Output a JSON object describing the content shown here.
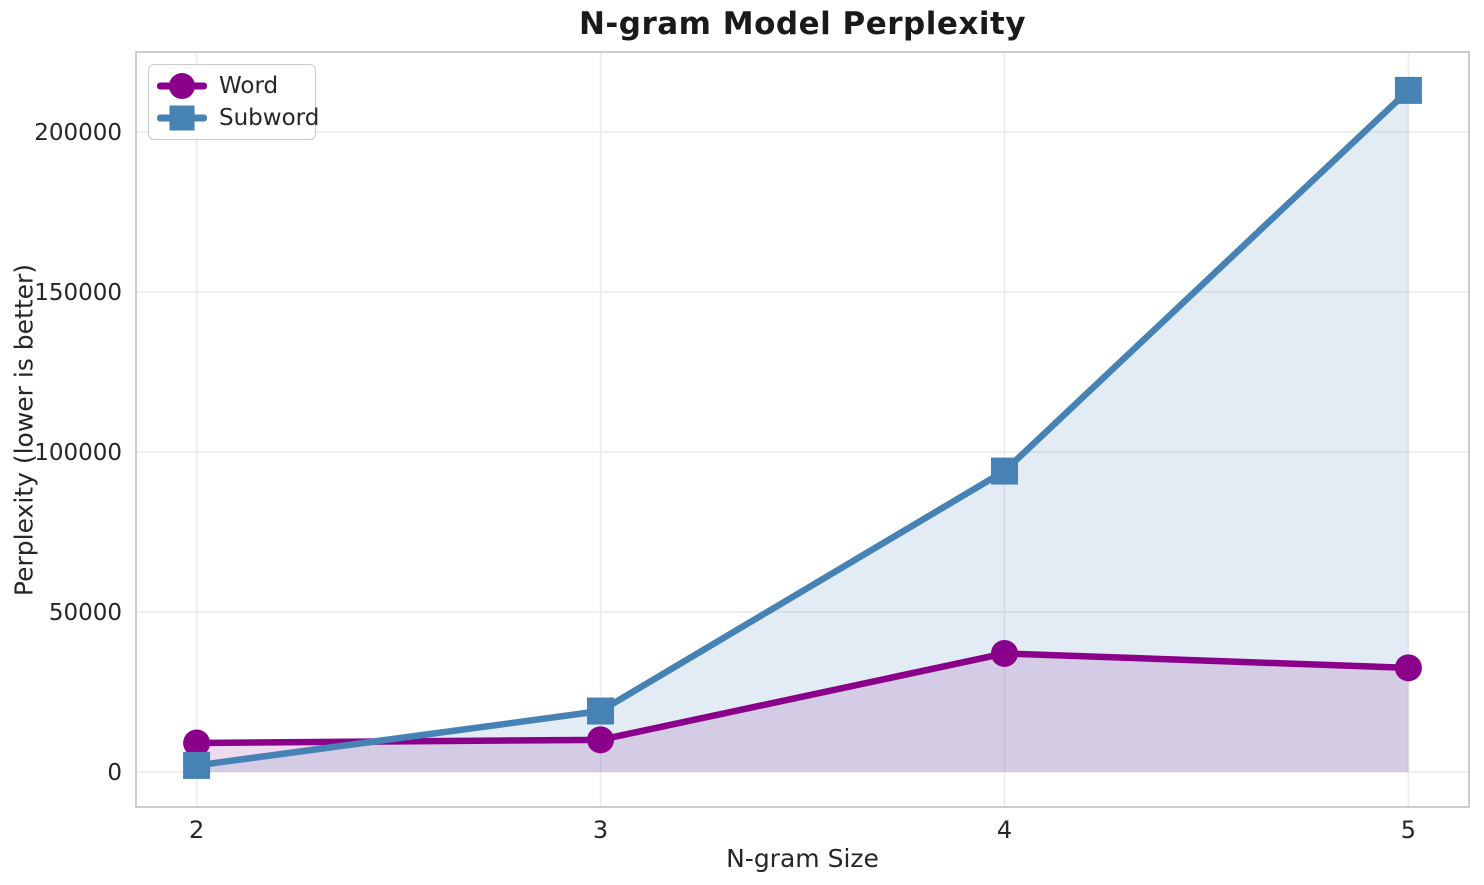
{
  "title": {
    "text": "N-gram Model Perplexity"
  },
  "axes": {
    "xlabel": "N-gram Size",
    "ylabel": "Perplexity (lower is better)"
  },
  "legend": {
    "position": "upper left",
    "items": [
      {
        "label": "Word",
        "color": "#8B008B",
        "marker": "circle"
      },
      {
        "label": "Subword",
        "color": "#4682B4",
        "marker": "square"
      }
    ]
  },
  "chart_data": {
    "type": "line",
    "title": "N-gram Model Perplexity",
    "xlabel": "N-gram Size",
    "ylabel": "Perplexity (lower is better)",
    "x": [
      2,
      3,
      4,
      5
    ],
    "series": [
      {
        "name": "Word",
        "color": "#8B008B",
        "marker": "circle",
        "values": [
          9000,
          10000,
          37000,
          32500
        ]
      },
      {
        "name": "Subword",
        "color": "#4682B4",
        "marker": "square",
        "values": [
          2000,
          19000,
          94000,
          213000
        ]
      }
    ],
    "xticks": [
      "2",
      "3",
      "4",
      "5"
    ],
    "xtick_positions": [
      2,
      3,
      4,
      5
    ],
    "yticks": [
      "0",
      "50000",
      "100000",
      "150000",
      "200000"
    ],
    "ytick_positions": [
      0,
      50000,
      100000,
      150000,
      200000
    ],
    "xlim": [
      1.85,
      5.15
    ],
    "ylim": [
      -11000,
      225000
    ],
    "grid": true,
    "fill_to_zero": true,
    "fill_alpha": 0.15,
    "legend_position": "upper left"
  },
  "style": {
    "background": "#FFFFFF",
    "grid_color": "#EBEBEB",
    "spine_color": "#C6C6C6",
    "tick_text_color": "#262626",
    "title_color": "#1A1A1A"
  }
}
